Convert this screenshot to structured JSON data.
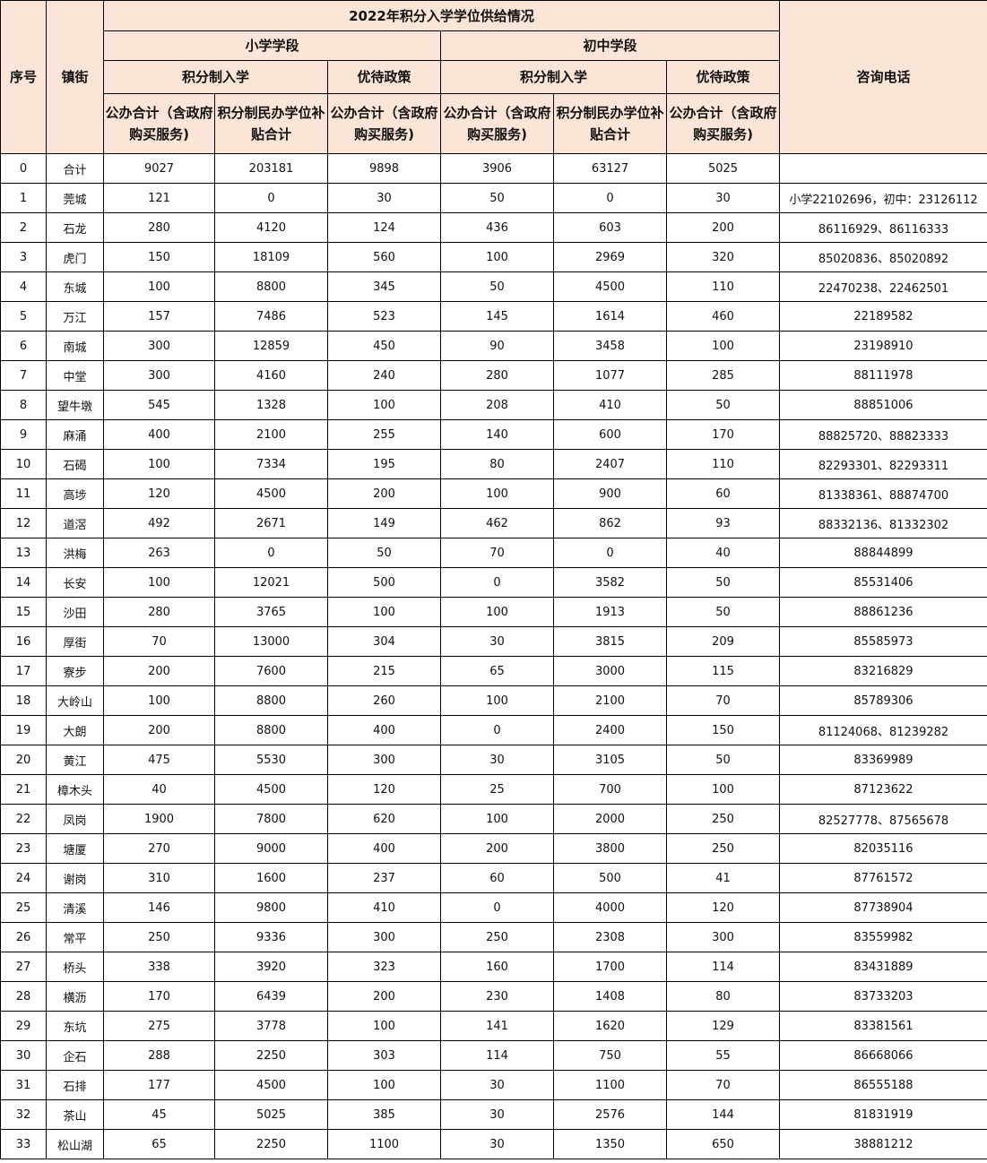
{
  "header": {
    "seq": "序号",
    "town": "镇街",
    "title": "2022年积分入学学位供给情况",
    "phone": "咨询电话",
    "primary": "小学学段",
    "middle": "初中学段",
    "points_admission": "积分制入学",
    "preferential": "优待政策",
    "public_total": "公办合计（含政府购买服务)",
    "private_subsidy": "积分制民办学位补贴合计"
  },
  "colors": {
    "header_bg": "#fce4d6",
    "border": "#000000"
  },
  "rows": [
    [
      "0",
      "合计",
      "9027",
      "203181",
      "9898",
      "3906",
      "63127",
      "5025",
      ""
    ],
    [
      "1",
      "莞城",
      "121",
      "0",
      "30",
      "50",
      "0",
      "30",
      "小学22102696，初中：23126112"
    ],
    [
      "2",
      "石龙",
      "280",
      "4120",
      "124",
      "436",
      "603",
      "200",
      "86116929、86116333"
    ],
    [
      "3",
      "虎门",
      "150",
      "18109",
      "560",
      "100",
      "2969",
      "320",
      "85020836、85020892"
    ],
    [
      "4",
      "东城",
      "100",
      "8800",
      "345",
      "50",
      "4500",
      "110",
      "22470238、22462501"
    ],
    [
      "5",
      "万江",
      "157",
      "7486",
      "523",
      "145",
      "1614",
      "460",
      "22189582"
    ],
    [
      "6",
      "南城",
      "300",
      "12859",
      "450",
      "90",
      "3458",
      "100",
      "23198910"
    ],
    [
      "7",
      "中堂",
      "300",
      "4160",
      "240",
      "280",
      "1077",
      "285",
      "88111978"
    ],
    [
      "8",
      "望牛墩",
      "545",
      "1328",
      "100",
      "208",
      "410",
      "50",
      "88851006"
    ],
    [
      "9",
      "麻涌",
      "400",
      "2100",
      "255",
      "140",
      "600",
      "170",
      "88825720、88823333"
    ],
    [
      "10",
      "石碣",
      "100",
      "7334",
      "195",
      "80",
      "2407",
      "110",
      "82293301、82293311"
    ],
    [
      "11",
      "高埗",
      "120",
      "4500",
      "200",
      "100",
      "900",
      "60",
      "81338361、88874700"
    ],
    [
      "12",
      "道滘",
      "492",
      "2671",
      "149",
      "462",
      "862",
      "93",
      "88332136、81332302"
    ],
    [
      "13",
      "洪梅",
      "263",
      "0",
      "50",
      "70",
      "0",
      "40",
      "88844899"
    ],
    [
      "14",
      "长安",
      "100",
      "12021",
      "500",
      "0",
      "3582",
      "50",
      "85531406"
    ],
    [
      "15",
      "沙田",
      "280",
      "3765",
      "100",
      "100",
      "1913",
      "50",
      "88861236"
    ],
    [
      "16",
      "厚街",
      "70",
      "13000",
      "304",
      "30",
      "3815",
      "209",
      "85585973"
    ],
    [
      "17",
      "寮步",
      "200",
      "7600",
      "215",
      "65",
      "3000",
      "115",
      "83216829"
    ],
    [
      "18",
      "大岭山",
      "100",
      "8800",
      "260",
      "100",
      "2100",
      "70",
      "85789306"
    ],
    [
      "19",
      "大朗",
      "200",
      "8800",
      "400",
      "0",
      "2400",
      "150",
      "81124068、81239282"
    ],
    [
      "20",
      "黄江",
      "475",
      "5530",
      "300",
      "30",
      "3105",
      "50",
      "83369989"
    ],
    [
      "21",
      "樟木头",
      "40",
      "4500",
      "120",
      "25",
      "700",
      "100",
      "87123622"
    ],
    [
      "22",
      "凤岗",
      "1900",
      "7800",
      "620",
      "100",
      "2000",
      "250",
      "82527778、87565678"
    ],
    [
      "23",
      "塘厦",
      "270",
      "9000",
      "400",
      "200",
      "3800",
      "250",
      "82035116"
    ],
    [
      "24",
      "谢岗",
      "310",
      "1600",
      "237",
      "60",
      "500",
      "41",
      "87761572"
    ],
    [
      "25",
      "清溪",
      "146",
      "9800",
      "410",
      "0",
      "4000",
      "120",
      "87738904"
    ],
    [
      "26",
      "常平",
      "250",
      "9336",
      "300",
      "250",
      "2308",
      "300",
      "83559982"
    ],
    [
      "27",
      "桥头",
      "338",
      "3920",
      "323",
      "160",
      "1700",
      "114",
      "83431889"
    ],
    [
      "28",
      "横沥",
      "170",
      "6439",
      "200",
      "230",
      "1408",
      "80",
      "83733203"
    ],
    [
      "29",
      "东坑",
      "275",
      "3778",
      "100",
      "141",
      "1620",
      "129",
      "83381561"
    ],
    [
      "30",
      "企石",
      "288",
      "2250",
      "303",
      "114",
      "750",
      "55",
      "86668066"
    ],
    [
      "31",
      "石排",
      "177",
      "4500",
      "100",
      "30",
      "1100",
      "70",
      "86555188"
    ],
    [
      "32",
      "茶山",
      "45",
      "5025",
      "385",
      "30",
      "2576",
      "144",
      "81831919"
    ],
    [
      "33",
      "松山湖",
      "65",
      "2250",
      "1100",
      "30",
      "1350",
      "650",
      "38881212"
    ]
  ]
}
